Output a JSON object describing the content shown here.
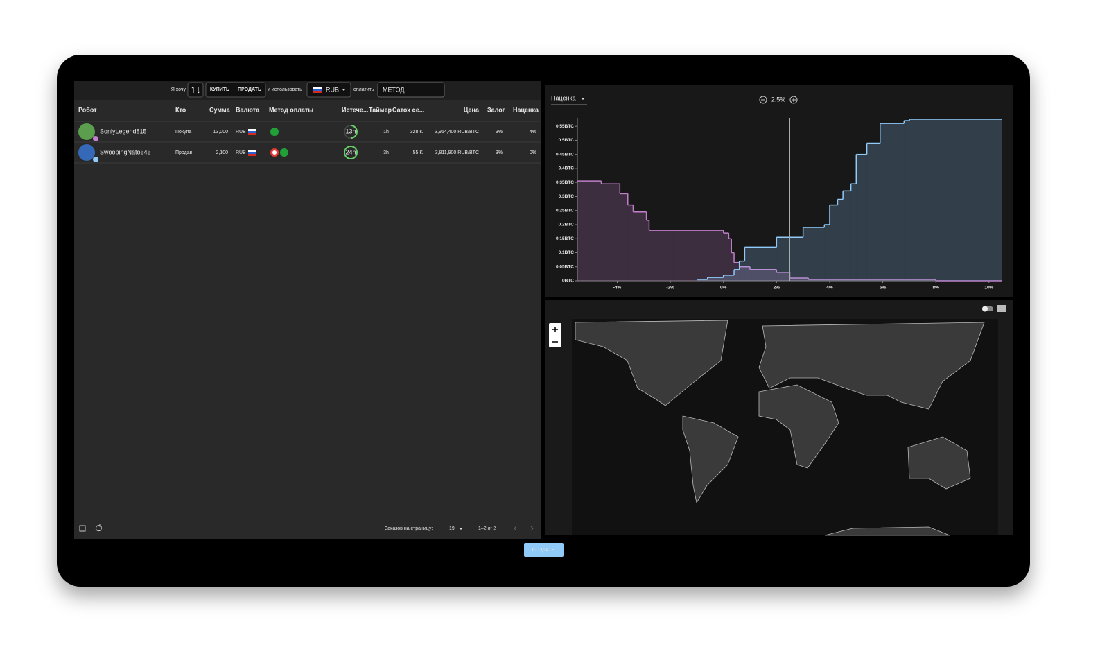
{
  "toolbar": {
    "i_want": "Я хочу",
    "buy": "КУПИТЬ",
    "sell": "ПРОДАТЬ",
    "and_use": "и использовать",
    "currency": "RUB",
    "pay": "оплатить",
    "method": "МЕТОД"
  },
  "table": {
    "headers": [
      "Робот",
      "Кто",
      "Сумма",
      "Валюта",
      "Метод оплаты",
      "Истече...",
      "Таймер",
      "Сатох се...",
      "Цена",
      "Залог",
      "Наценка"
    ],
    "rows": [
      {
        "robot": "SonlyLegend815",
        "type": "Покупа",
        "amount": "13,000",
        "currency": "RUB",
        "expiry": "13h",
        "timer": "1h",
        "sats": "328 K",
        "price": "3,964,400 RUB/BTC",
        "bond": "3%",
        "premium": "4%"
      },
      {
        "robot": "SwoopingNato646",
        "type": "Продав",
        "amount": "2,100",
        "currency": "RUB",
        "expiry": "24h",
        "timer": "3h",
        "sats": "55 K",
        "price": "3,811,900 RUB/BTC",
        "bond": "3%",
        "premium": "0%"
      }
    ]
  },
  "pagination": {
    "per_page_label": "Заказов на страницу:",
    "per_page": "19",
    "range": "1–2 of 2"
  },
  "create_button": "СОЗДАТЬ",
  "depth_chart": {
    "type": "step-area",
    "premium_selector": "Наценка",
    "center": {
      "value": 2.5,
      "label": "2.5%"
    },
    "xlim": [
      -5.5,
      10.5
    ],
    "ylim": [
      0,
      0.58
    ],
    "xticks": [
      {
        "value": -4,
        "label": "-4%"
      },
      {
        "value": -2,
        "label": "-2%"
      },
      {
        "value": 0,
        "label": "0%"
      },
      {
        "value": 2,
        "label": "2%"
      },
      {
        "value": 4,
        "label": "4%"
      },
      {
        "value": 6,
        "label": "6%"
      },
      {
        "value": 8,
        "label": "8%"
      },
      {
        "value": 10,
        "label": "10%"
      }
    ],
    "yticks": [
      {
        "value": 0,
        "label": "0BTC"
      },
      {
        "value": 0.05,
        "label": "0.05BTC"
      },
      {
        "value": 0.1,
        "label": "0.1BTC"
      },
      {
        "value": 0.15,
        "label": "0.15BTC"
      },
      {
        "value": 0.2,
        "label": "0.2BTC"
      },
      {
        "value": 0.25,
        "label": "0.25BTC"
      },
      {
        "value": 0.3,
        "label": "0.3BTC"
      },
      {
        "value": 0.35,
        "label": "0.35BTC"
      },
      {
        "value": 0.4,
        "label": "0.4BTC"
      },
      {
        "value": 0.45,
        "label": "0.45BTC"
      },
      {
        "value": 0.5,
        "label": "0.5BTC"
      },
      {
        "value": 0.55,
        "label": "0.55BTC"
      }
    ],
    "series": [
      {
        "color": "#c27fcb",
        "x": [
          -5.5,
          -4.6,
          -3.9,
          -3.6,
          -3.4,
          -2.9,
          -2.8,
          -1.9,
          0,
          0.2,
          0.3,
          0.4,
          0.6,
          1.0,
          2.0,
          2.5,
          3.2,
          8.0
        ],
        "values": [
          0.355,
          0.345,
          0.31,
          0.27,
          0.245,
          0.215,
          0.18,
          0.18,
          0.17,
          0.15,
          0.1,
          0.065,
          0.05,
          0.04,
          0.03,
          0.01,
          0.005,
          0
        ]
      },
      {
        "color": "#90caf9",
        "x": [
          -1.0,
          -0.6,
          0,
          0.4,
          0.6,
          0.8,
          2.0,
          3.0,
          3.8,
          4.0,
          4.3,
          4.5,
          4.8,
          5.0,
          5.4,
          5.9,
          6.8,
          7.0
        ],
        "values": [
          0.005,
          0.012,
          0.02,
          0.04,
          0.07,
          0.12,
          0.155,
          0.19,
          0.2,
          0.27,
          0.29,
          0.32,
          0.345,
          0.45,
          0.49,
          0.56,
          0.57,
          0.575
        ]
      }
    ]
  }
}
